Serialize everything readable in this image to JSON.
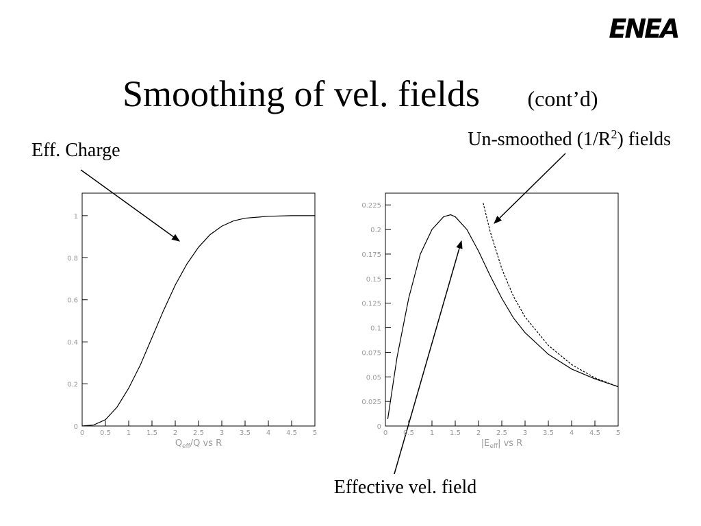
{
  "logo": "ENEA",
  "title": "Smoothing of vel. fields",
  "title_suffix": "(cont’d)",
  "annotations": {
    "eff_charge": "Eff. Charge",
    "unsmoothed": [
      "Un-smoothed (1/R",
      "2",
      ") fields"
    ],
    "effective": "Effective vel. field"
  },
  "chart_data": [
    {
      "type": "line",
      "xlabel": [
        "Q",
        "eff",
        "/Q vs R"
      ],
      "xlim": [
        0,
        5
      ],
      "xticks": [
        0,
        0.5,
        1,
        1.5,
        2,
        2.5,
        3,
        3.5,
        4,
        4.5,
        5
      ],
      "ylim": [
        0,
        1.107
      ],
      "yticks": [
        0,
        0.2,
        0.4,
        0.6,
        0.8,
        1
      ],
      "series": [
        {
          "color": "#000",
          "dashed": false,
          "x": [
            0,
            0.25,
            0.5,
            0.75,
            1,
            1.25,
            1.5,
            1.75,
            2,
            2.25,
            2.5,
            2.75,
            3,
            3.25,
            3.5,
            4,
            4.5,
            5
          ],
          "values": [
            0,
            0.005,
            0.03,
            0.09,
            0.18,
            0.29,
            0.42,
            0.55,
            0.67,
            0.77,
            0.85,
            0.91,
            0.95,
            0.975,
            0.988,
            0.997,
            1,
            1
          ]
        }
      ]
    },
    {
      "type": "line",
      "xlabel": [
        "|E",
        "eff",
        "| vs R"
      ],
      "xlim": [
        0,
        5
      ],
      "xticks": [
        0,
        0.5,
        1,
        1.5,
        2,
        2.5,
        3,
        3.5,
        4,
        4.5,
        5
      ],
      "ylim": [
        0,
        0.237
      ],
      "yticks": [
        0,
        0.025,
        0.05,
        0.075,
        0.1,
        0.125,
        0.15,
        0.175,
        0.2,
        0.225
      ],
      "series": [
        {
          "color": "#000",
          "dashed": false,
          "x": [
            0.05,
            0.25,
            0.5,
            0.75,
            1,
            1.25,
            1.4,
            1.5,
            1.75,
            2,
            2.25,
            2.5,
            2.75,
            3,
            3.5,
            4,
            4.5,
            5
          ],
          "values": [
            0.007,
            0.07,
            0.13,
            0.175,
            0.2,
            0.213,
            0.215,
            0.213,
            0.2,
            0.178,
            0.153,
            0.13,
            0.11,
            0.095,
            0.073,
            0.058,
            0.048,
            0.04
          ]
        },
        {
          "color": "#000",
          "dashed": true,
          "x": [
            2.1,
            2.25,
            2.5,
            2.75,
            3,
            3.5,
            4,
            4.5,
            5
          ],
          "values": [
            0.227,
            0.198,
            0.16,
            0.132,
            0.111,
            0.082,
            0.0625,
            0.049,
            0.04
          ]
        }
      ]
    }
  ]
}
